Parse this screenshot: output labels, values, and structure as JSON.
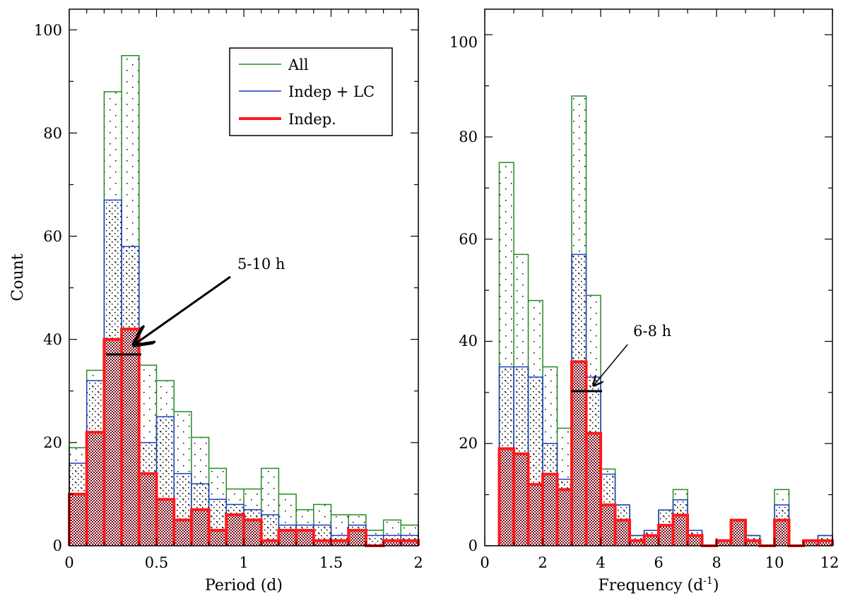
{
  "chart_data": [
    {
      "type": "bar",
      "title": "",
      "xlabel": "Period (d)",
      "ylabel": "Count",
      "xlim": [
        0,
        2
      ],
      "ylim": [
        0,
        104
      ],
      "xticks": [
        "0",
        "0.5",
        "1",
        "1.5",
        "2"
      ],
      "yticks": [
        "0",
        "20",
        "40",
        "60",
        "80",
        "100"
      ],
      "bin_width": 0.1,
      "bin_edges": [
        0.0,
        0.1,
        0.2,
        0.3,
        0.4,
        0.5,
        0.6,
        0.7,
        0.8,
        0.9,
        1.0,
        1.1,
        1.2,
        1.3,
        1.4,
        1.5,
        1.6,
        1.7,
        1.8,
        1.9,
        2.0
      ],
      "series": [
        {
          "name": "All",
          "color": "#228b22",
          "values": [
            19,
            34,
            88,
            95,
            35,
            32,
            26,
            21,
            15,
            11,
            11,
            15,
            10,
            7,
            8,
            6,
            6,
            3,
            5,
            4
          ]
        },
        {
          "name": "Indep + LC",
          "color": "#1f3fbf",
          "values": [
            16,
            32,
            67,
            58,
            20,
            25,
            14,
            12,
            9,
            8,
            7,
            6,
            4,
            4,
            4,
            2,
            4,
            2,
            2,
            2
          ]
        },
        {
          "name": "Indep.",
          "color": "#ff1a1a",
          "values": [
            10,
            22,
            40,
            42,
            14,
            9,
            5,
            7,
            3,
            6,
            5,
            1,
            3,
            3,
            1,
            1,
            3,
            0,
            1,
            1
          ]
        }
      ],
      "legend": {
        "position": "top-right",
        "entries": [
          "All",
          "Indep + LC",
          "Indep."
        ]
      },
      "annotation": {
        "text": "5-10 h",
        "range_x": [
          0.21,
          0.42
        ],
        "y": 36.5,
        "arrow_tip": [
          0.4,
          39
        ],
        "label_at": [
          1.0,
          52
        ]
      }
    },
    {
      "type": "bar",
      "title": "",
      "xlabel": "Frequency (d",
      "xlabel_sup": "-1",
      "xlabel_suffix": ")",
      "ylabel": "",
      "xlim": [
        0,
        12
      ],
      "ylim": [
        0,
        105
      ],
      "xticks": [
        "0",
        "2",
        "4",
        "6",
        "8",
        "10",
        "12"
      ],
      "yticks": [
        "0",
        "20",
        "40",
        "60",
        "80",
        "100"
      ],
      "bin_width": 0.5,
      "bin_edges": [
        0.5,
        1.0,
        1.5,
        2.0,
        2.5,
        3.0,
        3.5,
        4.0,
        4.5,
        5.0,
        5.5,
        6.0,
        6.5,
        7.0,
        7.5,
        8.0,
        8.5,
        9.0,
        9.5,
        10.0,
        10.5,
        11.0,
        11.5,
        12.0
      ],
      "series": [
        {
          "name": "All",
          "color": "#228b22",
          "values": [
            75,
            57,
            48,
            35,
            23,
            88,
            49,
            15,
            8,
            2,
            3,
            7,
            11,
            3,
            0,
            1,
            5,
            2,
            0,
            11,
            0,
            1,
            2
          ]
        },
        {
          "name": "Indep + LC",
          "color": "#1f3fbf",
          "values": [
            35,
            35,
            33,
            20,
            13,
            57,
            33,
            14,
            8,
            2,
            3,
            7,
            9,
            3,
            0,
            1,
            5,
            2,
            0,
            8,
            0,
            1,
            2
          ]
        },
        {
          "name": "Indep.",
          "color": "#ff1a1a",
          "values": [
            19,
            18,
            12,
            14,
            11,
            36,
            22,
            8,
            5,
            1,
            2,
            4,
            6,
            2,
            0,
            1,
            5,
            1,
            0,
            5,
            0,
            1,
            1
          ]
        }
      ],
      "annotation": {
        "text": "6-8 h",
        "range_x": [
          3.0,
          4.0
        ],
        "y": 30.5,
        "arrow_tip": [
          3.65,
          31.5
        ],
        "label_at": [
          5.0,
          40
        ]
      }
    }
  ]
}
